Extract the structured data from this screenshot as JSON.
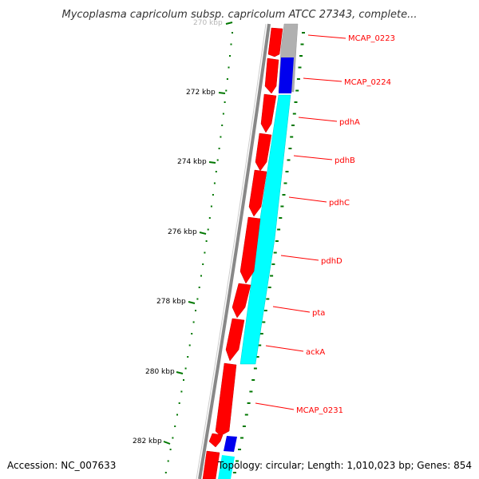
{
  "title": "Mycoplasma capricolum subsp. capricolum ATCC 27343, complete...",
  "footer": {
    "accession": "Accession: NC_007633",
    "summary": "Topology: circular; Length: 1,010,023 bp; Genes: 854"
  },
  "map": {
    "tick_labels": [
      "270 kbp",
      "272 kbp",
      "274 kbp",
      "276 kbp",
      "278 kbp",
      "280 kbp",
      "282 kbp"
    ],
    "genes": [
      {
        "label": "MCAP_0223",
        "color": "#ff0000",
        "strand_track": "gray"
      },
      {
        "label": "MCAP_0224",
        "color": "#ff0000",
        "strand_track": "blue"
      },
      {
        "label": "pdhA",
        "color": "#ff0000",
        "strand_track": "cyan"
      },
      {
        "label": "pdhB",
        "color": "#ff0000",
        "strand_track": "cyan"
      },
      {
        "label": "pdhC",
        "color": "#ff0000",
        "strand_track": "cyan"
      },
      {
        "label": "pdhD",
        "color": "#ff0000",
        "strand_track": "cyan"
      },
      {
        "label": "pta",
        "color": "#ff0000",
        "strand_track": "cyan"
      },
      {
        "label": "ackA",
        "color": "#ff0000",
        "strand_track": "cyan"
      },
      {
        "label": "MCAP_0231",
        "color": "#ff0000",
        "strand_track": "none"
      }
    ],
    "colors": {
      "cds": "#ff0000",
      "cog_gray": "#b0b0b0",
      "cog_blue": "#0000ee",
      "cog_cyan": "#00ffff",
      "backbone": "#888888",
      "gc_ticks": "#007700",
      "label": "#ff0000"
    }
  }
}
